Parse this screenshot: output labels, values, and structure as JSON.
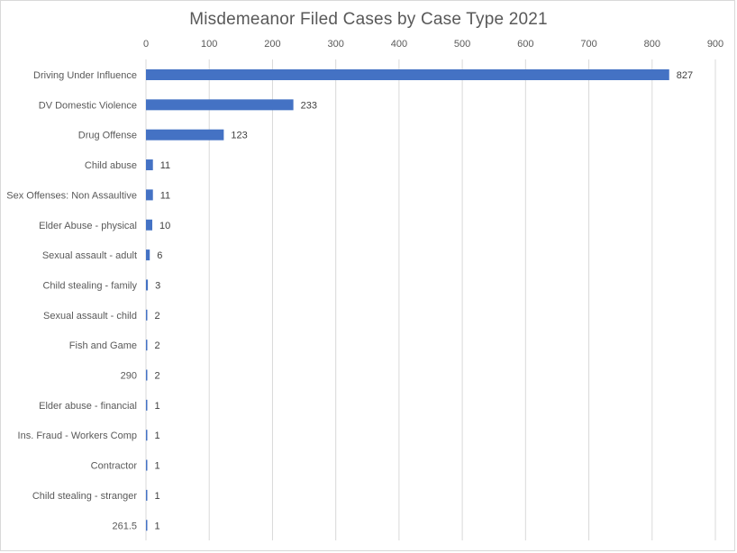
{
  "chart_data": {
    "type": "bar",
    "orientation": "horizontal",
    "title": "Misdemeanor Filed Cases by Case Type 2021",
    "xlim": [
      0,
      900
    ],
    "x_ticks": [
      0,
      100,
      200,
      300,
      400,
      500,
      600,
      700,
      800,
      900
    ],
    "x_axis_position": "top",
    "grid": true,
    "data_labels": true,
    "bar_color": "#4472C4",
    "categories": [
      "Driving Under Influence",
      "DV Domestic Violence",
      "Drug Offense",
      "Child abuse",
      "Sex Offenses: Non Assaultive",
      "Elder Abuse - physical",
      "Sexual assault - adult",
      "Child stealing - family",
      "Sexual assault - child",
      "Fish and Game",
      "290",
      "Elder abuse - financial",
      "Ins. Fraud - Workers Comp",
      "Contractor",
      "Child stealing - stranger",
      "261.5"
    ],
    "values": [
      827,
      233,
      123,
      11,
      11,
      10,
      6,
      3,
      2,
      2,
      2,
      1,
      1,
      1,
      1,
      1
    ]
  }
}
